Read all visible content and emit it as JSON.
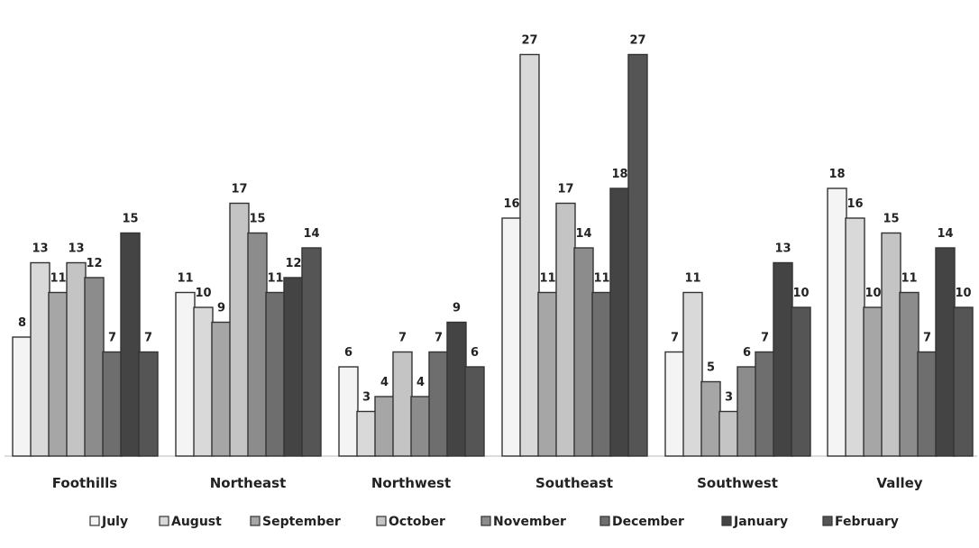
{
  "chart_data": {
    "type": "bar",
    "categories": [
      "Foothills",
      "Northeast",
      "Northwest",
      "Southeast",
      "Southwest",
      "Valley"
    ],
    "series": [
      {
        "name": "July",
        "values": [
          8,
          11,
          6,
          16,
          7,
          18
        ],
        "color": "#f4f4f4"
      },
      {
        "name": "August",
        "values": [
          13,
          10,
          3,
          27,
          11,
          16
        ],
        "color": "#d9d9d9"
      },
      {
        "name": "September",
        "values": [
          11,
          9,
          4,
          11,
          5,
          10
        ],
        "color": "#a6a6a6"
      },
      {
        "name": "October",
        "values": [
          13,
          17,
          7,
          17,
          3,
          15
        ],
        "color": "#c4c4c4"
      },
      {
        "name": "November",
        "values": [
          12,
          15,
          4,
          14,
          6,
          11
        ],
        "color": "#8c8c8c"
      },
      {
        "name": "December",
        "values": [
          7,
          11,
          7,
          11,
          7,
          7
        ],
        "color": "#6e6e6e"
      },
      {
        "name": "January",
        "values": [
          15,
          12,
          9,
          18,
          13,
          14
        ],
        "color": "#444444"
      },
      {
        "name": "February",
        "values": [
          7,
          14,
          6,
          27,
          10,
          10
        ],
        "color": "#555555"
      }
    ],
    "value_labels": [
      [
        "8",
        "13",
        "11",
        "13",
        "12",
        "7",
        "15",
        "7"
      ],
      [
        "11",
        "10",
        "9",
        "17",
        "15",
        "11",
        "12",
        "14"
      ],
      [
        "6",
        "3",
        "4",
        "7",
        "4",
        "7",
        "9",
        "6"
      ],
      [
        "16",
        "27",
        "11",
        "17",
        "14",
        "11",
        "18",
        "27"
      ],
      [
        "7",
        "11",
        "5",
        "3",
        "6",
        "7",
        "13",
        "10"
      ],
      [
        "18",
        "16",
        "10",
        "15",
        "11",
        "7",
        "14",
        "10"
      ]
    ],
    "ylim": [
      0,
      27
    ],
    "grid": false,
    "legend_position": "bottom",
    "title": "",
    "xlabel": "",
    "ylabel": ""
  }
}
